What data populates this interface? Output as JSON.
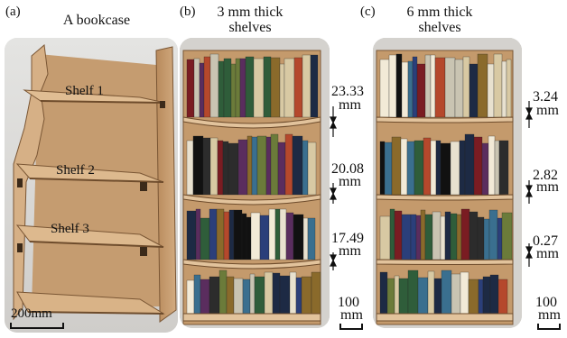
{
  "panels": [
    {
      "letter": "(a)",
      "title_lines": [
        "A bookcase"
      ]
    },
    {
      "letter": "(b)",
      "title_lines": [
        "3 mm thick",
        "shelves"
      ]
    },
    {
      "letter": "(c)",
      "title_lines": [
        "6 mm thick",
        "shelves"
      ]
    }
  ],
  "panel_a": {
    "shelves": [
      "Shelf 1",
      "Shelf 2",
      "Shelf 3"
    ],
    "scale": "200mm"
  },
  "panel_b": {
    "deflections": [
      {
        "value": "23.33",
        "unit": "mm"
      },
      {
        "value": "20.08",
        "unit": "mm"
      },
      {
        "value": "17.49",
        "unit": "mm"
      }
    ],
    "scale": {
      "value": "100",
      "unit": "mm"
    }
  },
  "panel_c": {
    "deflections": [
      {
        "value": "3.24",
        "unit": "mm"
      },
      {
        "value": "2.82",
        "unit": "mm"
      },
      {
        "value": "0.27",
        "unit": "mm"
      }
    ],
    "scale": {
      "value": "100",
      "unit": "mm"
    }
  },
  "colors": {
    "wood": "#c9a37a",
    "wood_dark": "#8a6440",
    "background_photo": "#d8d6d2"
  }
}
